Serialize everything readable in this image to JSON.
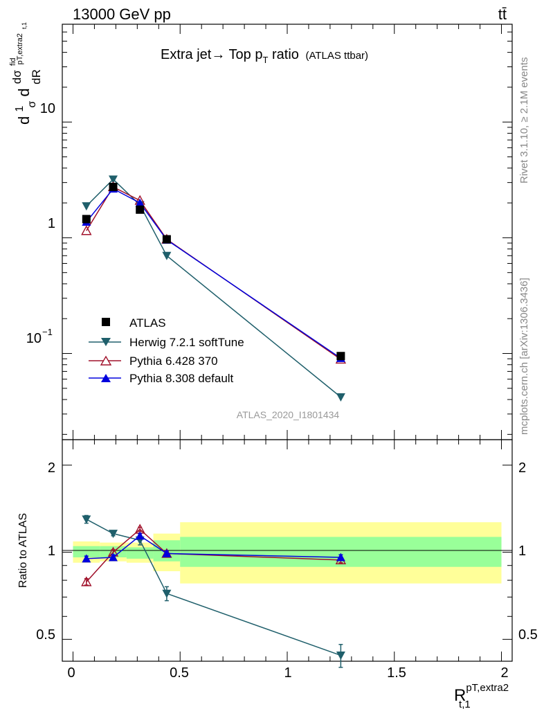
{
  "header": {
    "left": "13000 GeV pp",
    "right": "tt̄"
  },
  "plot_title": {
    "main": "Extra jet→ Top p",
    "sub": "T",
    "rest": " ratio",
    "paren": "(ATLAS ttbar)"
  },
  "analysis_id": "ATLAS_2020_I1801434",
  "side_labels": {
    "rivet": "Rivet 3.1.10, ≥ 2.1M events",
    "mcplots": "mcplots.cern.ch [arXiv:1306.3436]"
  },
  "y_axis_main": {
    "num": "dσ",
    "num_sup": "fid",
    "prefix": "d",
    "one": "1",
    "sigma": "σ",
    "den": "dR",
    "sub1": "pT,extra2",
    "sub2": "t,1"
  },
  "y_axis_ratio": "Ratio to ATLAS",
  "x_axis": {
    "main": "R",
    "sup": "pT,extra2",
    "sub": "t,1"
  },
  "legend": [
    {
      "label": "ATLAS"
    },
    {
      "label": "Herwig 7.2.1 softTune"
    },
    {
      "label": "Pythia 6.428 370"
    },
    {
      "label": "Pythia 8.308 default"
    }
  ],
  "chart_data": {
    "type": "line",
    "x_label": "R t,1 pT,extra2",
    "x_range": [
      -0.05,
      2.05
    ],
    "x_ticks": [
      "0",
      "0.5",
      "1",
      "1.5",
      "2"
    ],
    "main_panel": {
      "y_scale": "log",
      "y_range": [
        0.018,
        70
      ],
      "y_ticks": [
        "10^{-1}",
        "1",
        "10"
      ],
      "bin_edges": [
        0,
        0.125,
        0.25,
        0.375,
        0.5,
        2.0
      ],
      "x": [
        0.0625,
        0.1875,
        0.3125,
        0.4375,
        1.25
      ],
      "series": [
        {
          "name": "ATLAS",
          "color": "#000000",
          "marker": "square",
          "values": [
            1.45,
            2.75,
            1.75,
            0.97,
            0.095
          ]
        },
        {
          "name": "Herwig 7.2.1 softTune",
          "color": "#1f5f6b",
          "marker": "triangle-down",
          "values": [
            1.88,
            3.2,
            1.92,
            0.7,
            0.042
          ]
        },
        {
          "name": "Pythia 6.428 370",
          "color": "#a0102a",
          "marker": "triangle-up-open",
          "values": [
            1.15,
            2.75,
            2.1,
            0.97,
            0.089
          ]
        },
        {
          "name": "Pythia 8.308 default",
          "color": "#0000dd",
          "marker": "triangle-up",
          "values": [
            1.37,
            2.65,
            2.0,
            0.96,
            0.091
          ]
        }
      ]
    },
    "ratio_panel": {
      "y_scale": "log",
      "y_range": [
        0.42,
        2.45
      ],
      "y_ticks": [
        "0.5",
        "1",
        "2"
      ],
      "reference_line": 1,
      "band_yellow": [
        [
          0.92,
          1.09
        ],
        [
          0.93,
          1.08
        ],
        [
          0.92,
          1.08
        ],
        [
          0.86,
          1.16
        ],
        [
          0.78,
          1.27
        ]
      ],
      "band_green": [
        [
          0.96,
          1.05
        ],
        [
          0.96,
          1.05
        ],
        [
          0.95,
          1.04
        ],
        [
          0.93,
          1.1
        ],
        [
          0.89,
          1.13
        ]
      ],
      "series": [
        {
          "name": "Herwig 7.2.1 softTune",
          "values": [
            1.3,
            1.16,
            1.1,
            0.72,
            0.44
          ]
        },
        {
          "name": "Pythia 6.428 370",
          "values": [
            0.79,
            1.0,
            1.2,
            0.99,
            0.94
          ]
        },
        {
          "name": "Pythia 8.308 default",
          "values": [
            0.95,
            0.96,
            1.14,
            0.99,
            0.96
          ]
        }
      ],
      "errors": [
        {
          "name": "Herwig 7.2.1 softTune",
          "err": [
            0.04,
            0.02,
            0.04,
            0.04,
            0.04
          ]
        }
      ]
    }
  }
}
